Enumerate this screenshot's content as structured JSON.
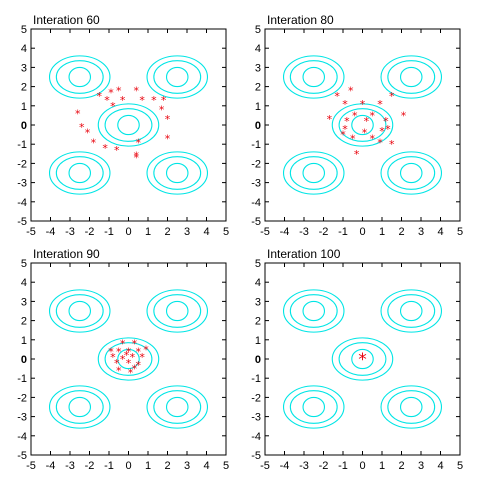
{
  "chart_data": [
    {
      "type": "scatter",
      "title": "Interation 60",
      "xlim": [
        -5,
        5
      ],
      "ylim": [
        -5,
        5
      ],
      "xticks": [
        -5,
        -4,
        -3,
        -2,
        -1,
        0,
        1,
        2,
        3,
        4,
        5
      ],
      "yticks": [
        5,
        4,
        3,
        2,
        1,
        0,
        -1,
        -2,
        -3,
        -4,
        -5
      ],
      "grid": false,
      "contour_centers": [
        [
          -2.5,
          2.5
        ],
        [
          2.5,
          2.5
        ],
        [
          0,
          0
        ],
        [
          -2.5,
          -2.5
        ],
        [
          2.5,
          -2.5
        ]
      ],
      "contour_radii": [
        [
          0.55,
          0.5
        ],
        [
          1.2,
          0.85
        ],
        [
          1.55,
          1.1
        ]
      ],
      "marker": "*",
      "marker_color": "#e8000b",
      "points": [
        [
          -0.9,
          1.7
        ],
        [
          -0.5,
          1.8
        ],
        [
          0.4,
          1.8
        ],
        [
          -1.5,
          1.5
        ],
        [
          1.3,
          1.3
        ],
        [
          -1.1,
          1.3
        ],
        [
          -0.3,
          1.3
        ],
        [
          0.7,
          1.3
        ],
        [
          1.8,
          1.3
        ],
        [
          -0.8,
          1.0
        ],
        [
          1.7,
          0.8
        ],
        [
          -2.6,
          0.6
        ],
        [
          -2.4,
          -0.1
        ],
        [
          2.0,
          0.3
        ],
        [
          -2.1,
          -0.4
        ],
        [
          -1.8,
          -0.9
        ],
        [
          0.5,
          -0.9
        ],
        [
          2.0,
          -0.7
        ],
        [
          -1.2,
          -1.2
        ],
        [
          -0.6,
          -1.3
        ],
        [
          0.4,
          -1.6
        ],
        [
          0.4,
          -1.7
        ]
      ]
    },
    {
      "type": "scatter",
      "title": "Interation 80",
      "xlim": [
        -5,
        5
      ],
      "ylim": [
        -5,
        5
      ],
      "xticks": [
        -5,
        -4,
        -3,
        -2,
        -1,
        0,
        1,
        2,
        3,
        4,
        5
      ],
      "yticks": [
        5,
        4,
        3,
        2,
        1,
        0,
        -1,
        -2,
        -3,
        -4,
        -5
      ],
      "grid": false,
      "contour_centers": [
        [
          -2.5,
          2.5
        ],
        [
          2.5,
          2.5
        ],
        [
          0,
          0
        ],
        [
          -2.5,
          -2.5
        ],
        [
          2.5,
          -2.5
        ]
      ],
      "contour_radii": [
        [
          0.55,
          0.5
        ],
        [
          1.2,
          0.85
        ],
        [
          1.55,
          1.1
        ]
      ],
      "marker": "*",
      "marker_color": "#e8000b",
      "points": [
        [
          -0.6,
          1.8
        ],
        [
          -1.3,
          1.5
        ],
        [
          1.5,
          1.5
        ],
        [
          -0.9,
          1.1
        ],
        [
          0.0,
          1.1
        ],
        [
          0.9,
          1.1
        ],
        [
          -0.4,
          0.5
        ],
        [
          0.5,
          0.5
        ],
        [
          -1.7,
          0.3
        ],
        [
          -0.8,
          0.2
        ],
        [
          0.2,
          0.2
        ],
        [
          1.2,
          0.2
        ],
        [
          2.1,
          0.5
        ],
        [
          -0.9,
          -0.2
        ],
        [
          0.1,
          -0.4
        ],
        [
          1.0,
          -0.3
        ],
        [
          1.3,
          -0.2
        ],
        [
          -0.5,
          -0.7
        ],
        [
          0.5,
          -0.7
        ],
        [
          0.9,
          -0.9
        ],
        [
          -0.3,
          -1.5
        ],
        [
          1.5,
          -1.0
        ],
        [
          -1.0,
          -0.5
        ]
      ]
    },
    {
      "type": "scatter",
      "title": "Interation 90",
      "xlim": [
        -5,
        5
      ],
      "ylim": [
        -5,
        5
      ],
      "xticks": [
        -5,
        -4,
        -3,
        -2,
        -1,
        0,
        1,
        2,
        3,
        4,
        5
      ],
      "yticks": [
        5,
        4,
        3,
        2,
        1,
        0,
        -1,
        -2,
        -3,
        -4,
        -5
      ],
      "grid": false,
      "contour_centers": [
        [
          -2.5,
          2.5
        ],
        [
          2.5,
          2.5
        ],
        [
          0,
          0
        ],
        [
          -2.5,
          -2.5
        ],
        [
          2.5,
          -2.5
        ]
      ],
      "contour_radii": [
        [
          0.55,
          0.5
        ],
        [
          1.2,
          0.85
        ],
        [
          1.55,
          1.1
        ]
      ],
      "marker": "*",
      "marker_color": "#e8000b",
      "points": [
        [
          -0.3,
          0.8
        ],
        [
          0.3,
          0.8
        ],
        [
          -0.9,
          0.4
        ],
        [
          -0.5,
          0.4
        ],
        [
          0.0,
          0.4
        ],
        [
          0.5,
          0.4
        ],
        [
          0.9,
          0.5
        ],
        [
          -0.8,
          0.1
        ],
        [
          -0.3,
          0.0
        ],
        [
          0.2,
          0.1
        ],
        [
          0.7,
          0.1
        ],
        [
          -0.6,
          -0.2
        ],
        [
          0.0,
          -0.2
        ],
        [
          0.5,
          -0.3
        ],
        [
          -0.5,
          -0.6
        ],
        [
          0.1,
          -0.7
        ],
        [
          -0.1,
          0.2
        ],
        [
          0.3,
          -0.5
        ]
      ]
    },
    {
      "type": "scatter",
      "title": "Interation 100",
      "xlim": [
        -5,
        5
      ],
      "ylim": [
        -5,
        5
      ],
      "xticks": [
        -5,
        -4,
        -3,
        -2,
        -1,
        0,
        1,
        2,
        3,
        4,
        5
      ],
      "yticks": [
        5,
        4,
        3,
        2,
        1,
        0,
        -1,
        -2,
        -3,
        -4,
        -5
      ],
      "grid": false,
      "contour_centers": [
        [
          -2.5,
          2.5
        ],
        [
          2.5,
          2.5
        ],
        [
          0,
          0
        ],
        [
          -2.5,
          -2.5
        ],
        [
          2.5,
          -2.5
        ]
      ],
      "contour_radii": [
        [
          0.55,
          0.5
        ],
        [
          1.2,
          0.85
        ],
        [
          1.55,
          1.1
        ]
      ],
      "marker": "*",
      "marker_color": "#e8000b",
      "points": [
        [
          0.0,
          0.0
        ]
      ]
    }
  ]
}
